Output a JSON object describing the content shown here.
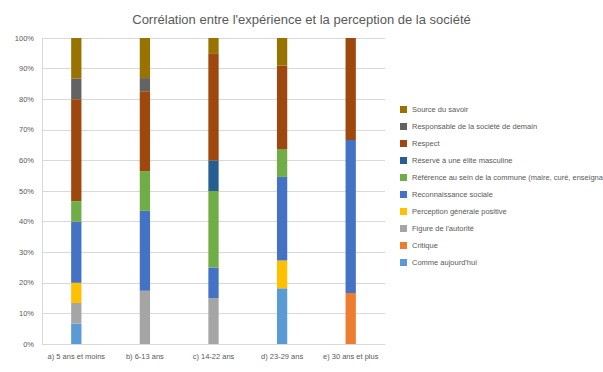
{
  "chart_data": {
    "type": "bar",
    "title": "Corrélation entre l'expérience et la perception de la société",
    "categories": [
      "a) 5 ans et moins",
      "b) 6-13 ans",
      "c) 14-22 ans",
      "d) 23-29 ans",
      "e) 30 ans et plus"
    ],
    "stacked": true,
    "grid": true,
    "legend": "right",
    "ylim": [
      0,
      100
    ],
    "yticks": [
      {
        "value": 0,
        "label": "0%"
      },
      {
        "value": 10,
        "label": "10%"
      },
      {
        "value": 20,
        "label": "20%"
      },
      {
        "value": 30,
        "label": "30%"
      },
      {
        "value": 40,
        "label": "40%"
      },
      {
        "value": 50,
        "label": "50%"
      },
      {
        "value": 60,
        "label": "60%"
      },
      {
        "value": 70,
        "label": "70%"
      },
      {
        "value": 80,
        "label": "80%"
      },
      {
        "value": 90,
        "label": "90%"
      },
      {
        "value": 100,
        "label": "100%"
      }
    ],
    "series": [
      {
        "name": "Comme aujourd'hui",
        "color": "#5b9bd5",
        "values": [
          6.7,
          0,
          0,
          18.2,
          0
        ]
      },
      {
        "name": "Critique",
        "color": "#ed7d31",
        "values": [
          0,
          0,
          0,
          0,
          16.7
        ]
      },
      {
        "name": "Figure de l'autorité",
        "color": "#a5a5a5",
        "values": [
          6.7,
          17.4,
          15,
          0,
          0
        ]
      },
      {
        "name": "Perception générale positive",
        "color": "#ffc000",
        "values": [
          6.6,
          0,
          0,
          9.1,
          0
        ]
      },
      {
        "name": "Reconnaissance sociale",
        "color": "#4472c4",
        "values": [
          20,
          26.1,
          10,
          27.3,
          50
        ]
      },
      {
        "name": "Référence au sein de la commune (maire, curé, enseignant)",
        "color": "#70ad47",
        "values": [
          6.7,
          13,
          25,
          9.1,
          0
        ]
      },
      {
        "name": "Réservé à une élite masculine",
        "color": "#255e91",
        "values": [
          0,
          0,
          10,
          0,
          0
        ]
      },
      {
        "name": "Respect",
        "color": "#9e480e",
        "values": [
          33.3,
          26.1,
          35,
          27.3,
          33.3
        ]
      },
      {
        "name": "Responsable de la société de demain",
        "color": "#636363",
        "values": [
          6.7,
          4.3,
          0,
          0,
          0
        ]
      },
      {
        "name": "Source du savoir",
        "color": "#997300",
        "values": [
          13.3,
          13.1,
          5,
          9.0,
          0
        ]
      }
    ]
  }
}
